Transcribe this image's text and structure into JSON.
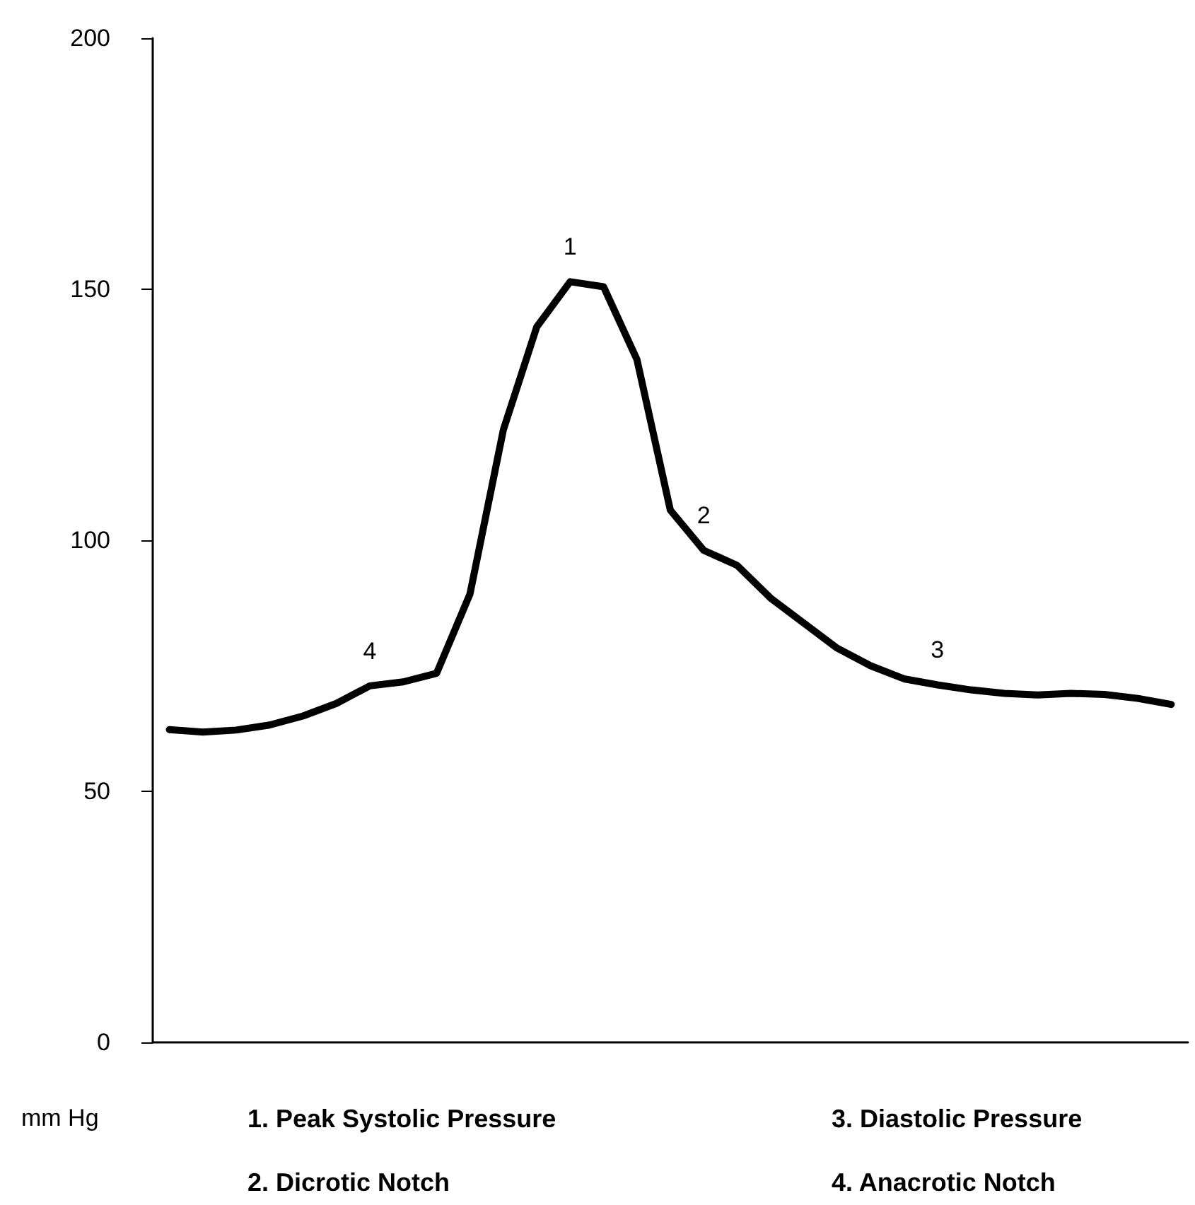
{
  "chart_data": {
    "type": "line",
    "ylabel": "mm Hg",
    "categories": [
      null,
      null,
      null,
      null,
      null,
      null,
      null,
      null,
      null,
      null,
      null,
      null,
      null,
      null,
      null,
      null,
      null,
      null,
      null,
      null,
      null,
      null,
      null,
      null,
      null,
      null,
      null,
      null,
      null,
      null,
      null
    ],
    "series": [
      {
        "color": "#000000",
        "values": [
          62.3,
          61.8,
          62.2,
          63.2,
          65,
          67.5,
          71,
          71.8,
          73.5,
          89.3,
          122,
          142.5,
          151.5,
          150.5,
          136,
          106,
          98,
          95,
          88.5,
          83.5,
          78.5,
          75,
          72.4,
          71.2,
          70.2,
          69.5,
          69.2,
          69.5,
          69.3,
          68.5,
          67.3
        ]
      }
    ],
    "ylim": [
      0,
      200
    ],
    "yticks": [
      0,
      50,
      100,
      150,
      200
    ],
    "grid": false,
    "marker": "none",
    "line_style": "solid",
    "tick_labels": "y",
    "annotations": [
      {
        "text": "4",
        "y": 71
      },
      {
        "text": "1",
        "y": 151.5
      },
      {
        "text": "2",
        "y": 98
      },
      {
        "text": "3",
        "y": 71.2
      },
      "1. Peak Systolic Pressure",
      "2. Dicrotic Notch",
      "3. Diastolic Pressure",
      "4. Anacrotic Notch"
    ]
  }
}
